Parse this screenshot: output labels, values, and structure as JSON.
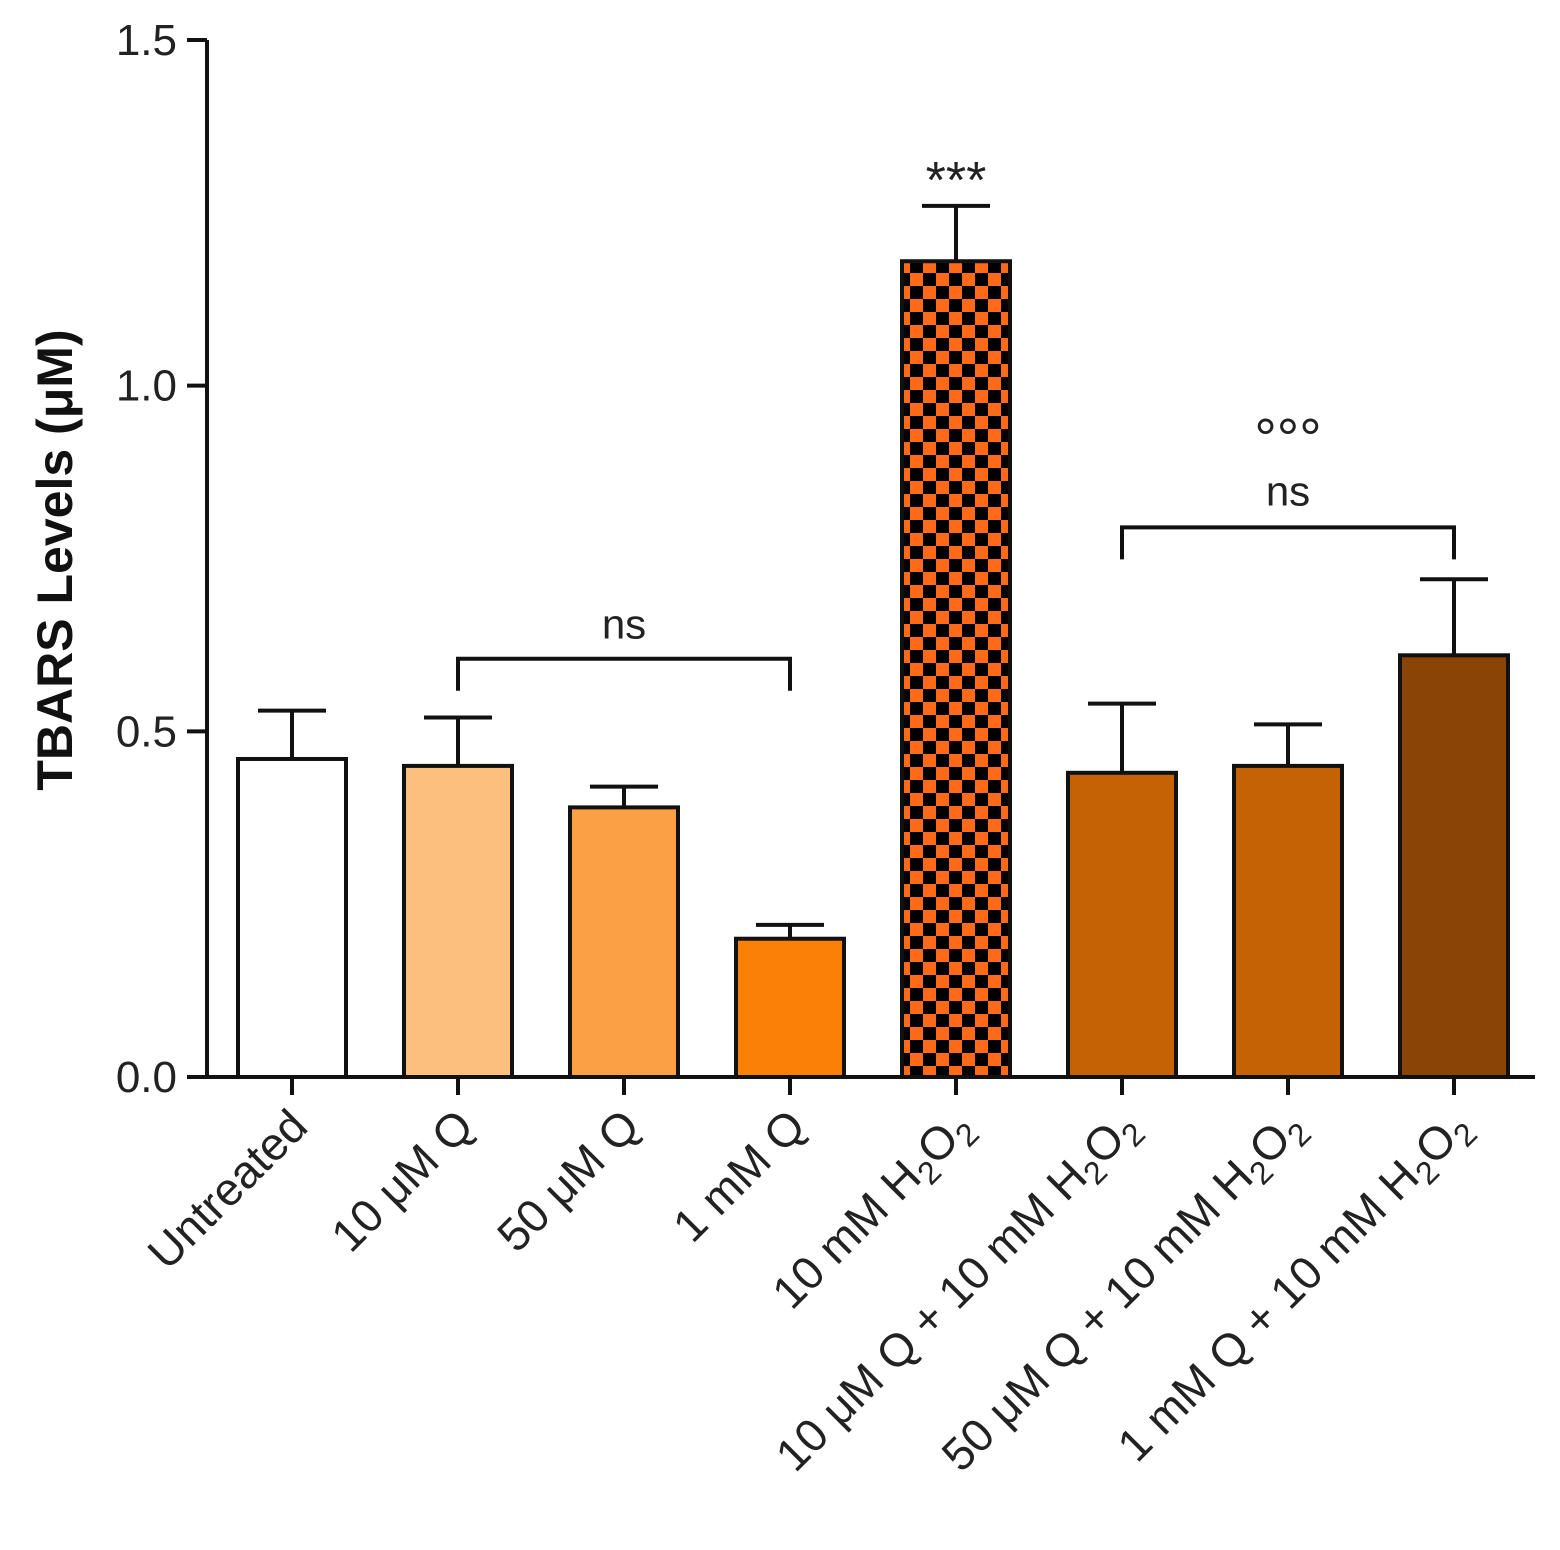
{
  "chart_data": {
    "type": "bar",
    "title": "",
    "xlabel": "",
    "ylabel": "TBARS Levels (μM)",
    "ylim": [
      0,
      1.5
    ],
    "yticks": [
      {
        "value": 0.0,
        "label": "0.0"
      },
      {
        "value": 0.5,
        "label": "0.5"
      },
      {
        "value": 1.0,
        "label": "1.0"
      },
      {
        "value": 1.5,
        "label": "1.5"
      }
    ],
    "categories": [
      {
        "label": "Untreated",
        "main": "Untreated",
        "sub": "",
        "tail": ""
      },
      {
        "label": "10 μM Q",
        "main": "10 μM Q",
        "sub": "",
        "tail": ""
      },
      {
        "label": "50 μM Q",
        "main": "50 μM Q",
        "sub": "",
        "tail": ""
      },
      {
        "label": "1 mM  Q",
        "main": "1 mM  Q",
        "sub": "",
        "tail": ""
      },
      {
        "label": "10 mM H2O2",
        "main": "10 mM H",
        "sub": "2",
        "tail": "O",
        "sub2": "2"
      },
      {
        "label": "10 μM Q + 10 mM H2O2",
        "main": "10 μM Q + 10 mM H",
        "sub": "2",
        "tail": "O",
        "sub2": "2"
      },
      {
        "label": "50 μM Q + 10 mM H2O2",
        "main": "50 μM Q + 10 mM H",
        "sub": "2",
        "tail": "O",
        "sub2": "2"
      },
      {
        "label": "1 mM Q + 10 mM H2O2",
        "main": "1 mM Q + 10 mM H",
        "sub": "2",
        "tail": "O",
        "sub2": "2"
      }
    ],
    "values": [
      0.46,
      0.45,
      0.39,
      0.2,
      1.18,
      0.44,
      0.45,
      0.61
    ],
    "errors": [
      0.07,
      0.07,
      0.03,
      0.02,
      0.08,
      0.1,
      0.06,
      0.11
    ],
    "colors": [
      "#ffffff",
      "#fdbf7e",
      "#fca045",
      "#fb8008",
      "checker",
      "#c46205",
      "#c46205",
      "#8a4405"
    ],
    "checker_colors": [
      "#ff6a1a",
      "#000000"
    ],
    "annotations": {
      "significance_h2o2": "***",
      "bracket_left_label": "ns",
      "bracket_right_label": "ns",
      "bracket_right_marker": "°°°",
      "bracket_left_range": [
        1,
        3
      ],
      "bracket_right_range": [
        5,
        7
      ]
    }
  }
}
